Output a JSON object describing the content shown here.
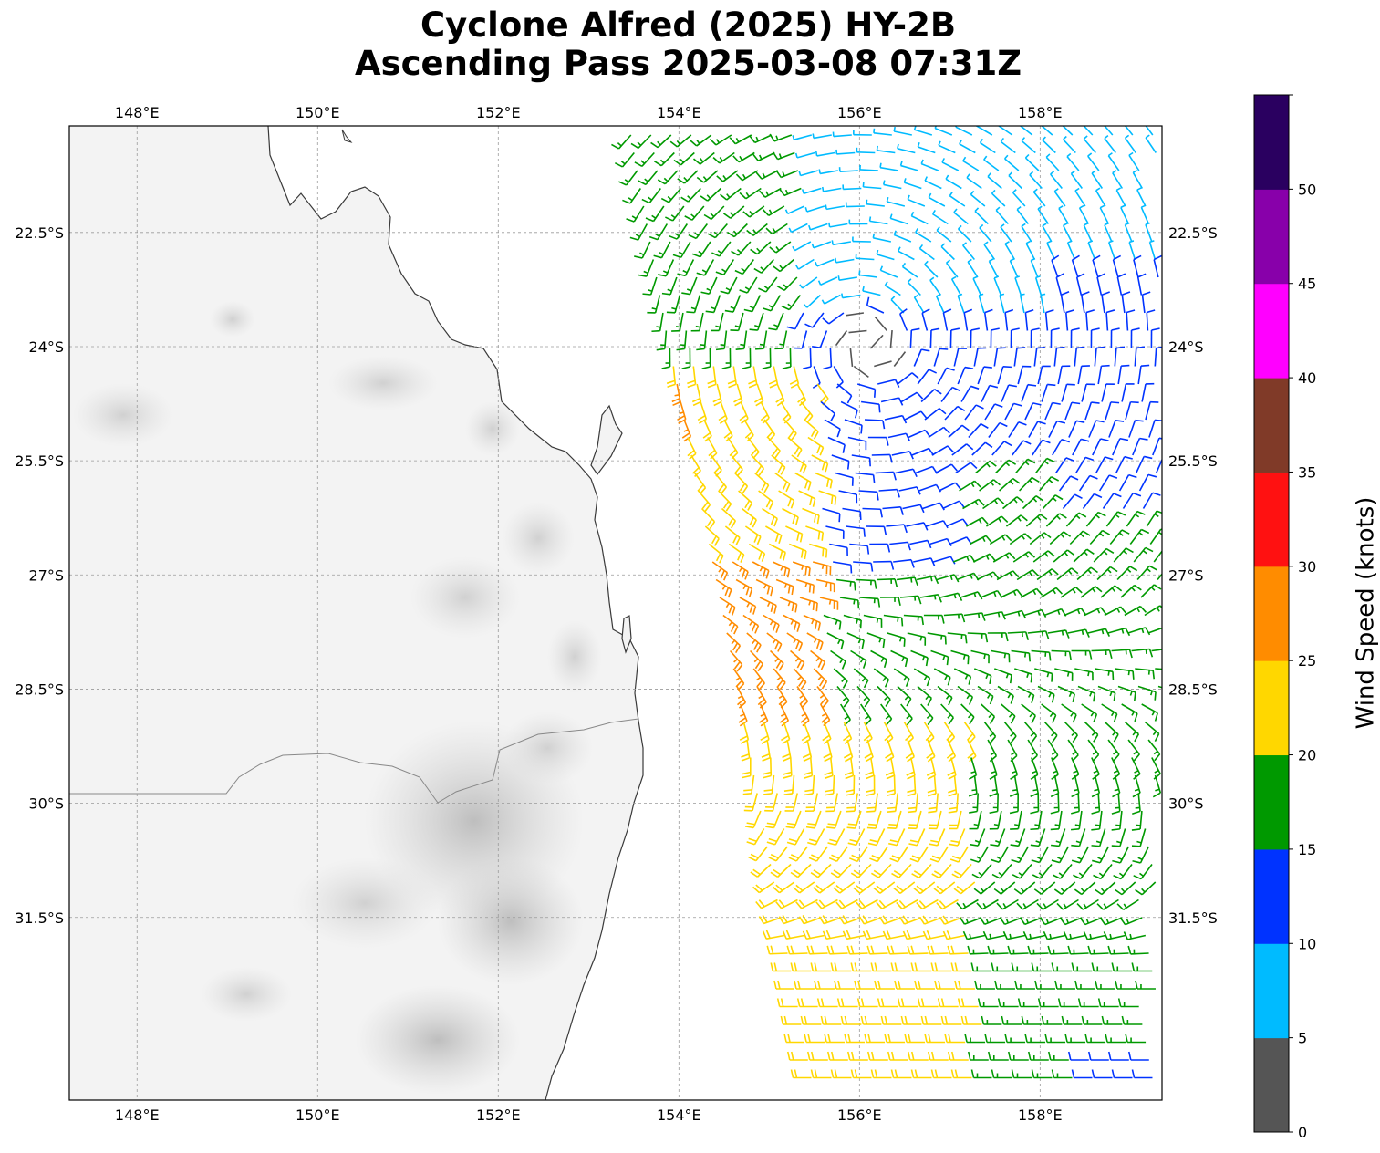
{
  "title_line1": "Cyclone Alfred (2025) HY-2B",
  "title_line2": "Ascending Pass 2025-03-08 07:31Z",
  "map": {
    "lon_range": [
      147.25,
      159.35
    ],
    "lat_range": [
      -33.9,
      -21.1
    ],
    "lon_ticks": [
      {
        "value": 148,
        "label": "148°E"
      },
      {
        "value": 150,
        "label": "150°E"
      },
      {
        "value": 152,
        "label": "152°E"
      },
      {
        "value": 154,
        "label": "154°E"
      },
      {
        "value": 156,
        "label": "156°E"
      },
      {
        "value": 158,
        "label": "158°E"
      }
    ],
    "lat_ticks": [
      {
        "value": -22.5,
        "label": "22.5°S"
      },
      {
        "value": -24,
        "label": "24°S"
      },
      {
        "value": -25.5,
        "label": "25.5°S"
      },
      {
        "value": -27,
        "label": "27°S"
      },
      {
        "value": -28.5,
        "label": "28.5°S"
      },
      {
        "value": -30,
        "label": "30°S"
      },
      {
        "value": -31.5,
        "label": "31.5°S"
      }
    ],
    "gridlines": true,
    "basemap": "grayscale topography with coastline and state border",
    "vortex_center": [
      156.1,
      -24.0
    ]
  },
  "colorbar": {
    "label": "Wind Speed (knots)",
    "ticks": [
      "0",
      "5",
      "10",
      "15",
      "20",
      "25",
      "30",
      "35",
      "40",
      "45",
      "50"
    ],
    "colors": [
      "#555555",
      "#00bbff",
      "#0033ff",
      "#009900",
      "#ffd700",
      "#ff8c00",
      "#ff1111",
      "#803a28",
      "#ff00ff",
      "#8800aa",
      "#2a0060"
    ]
  }
}
